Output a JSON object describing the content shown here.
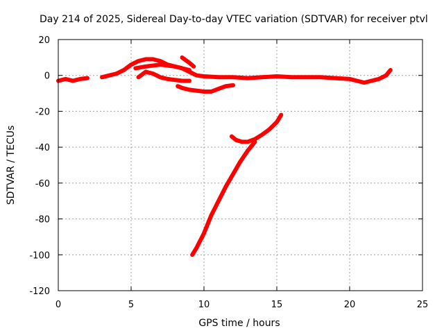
{
  "chart_data": {
    "type": "line",
    "title": "Day 214 of 2025, Sidereal Day-to-day VTEC variation (SDTVAR) for receiver ptvl",
    "xlabel": "GPS time / hours",
    "ylabel": "SDTVAR / TECUs",
    "xlim": [
      0,
      25
    ],
    "ylim": [
      -120,
      20
    ],
    "xticks": [
      "0",
      "5",
      "10",
      "15",
      "20",
      "25"
    ],
    "yticks": [
      "20",
      "0",
      "-20",
      "-40",
      "-60",
      "-80",
      "-100",
      "-120"
    ],
    "grid": true,
    "color": "#ff0000",
    "series": [
      {
        "x": [
          0.0,
          0.5,
          1.0,
          1.5,
          2.0
        ],
        "y": [
          -3,
          -2,
          -3,
          -2,
          -1.5
        ]
      },
      {
        "x": [
          3.0,
          3.5,
          4.0,
          4.5,
          5.0,
          5.5,
          6.0,
          6.5,
          7.0,
          7.5,
          8.0,
          8.5,
          9.0,
          9.5,
          10.0,
          11.0,
          12.0,
          13.0,
          14.0,
          15.0,
          16.0,
          17.0,
          18.0,
          19.0,
          20.0,
          20.5,
          21.0,
          21.5,
          22.0,
          22.5,
          22.8
        ],
        "y": [
          -1,
          0,
          1,
          3,
          6,
          8,
          9,
          9,
          8,
          6,
          5,
          4,
          2,
          0,
          -0.5,
          -1,
          -1,
          -1.5,
          -1,
          -0.5,
          -1,
          -1,
          -1,
          -1.5,
          -2,
          -3,
          -4,
          -3,
          -2,
          0,
          3
        ]
      },
      {
        "x": [
          5.3,
          6.0,
          7.0,
          8.0,
          9.0
        ],
        "y": [
          4,
          5,
          6,
          5,
          3
        ]
      },
      {
        "x": [
          5.5,
          6.0,
          6.5,
          7.0,
          7.5,
          8.0,
          8.5,
          9.0
        ],
        "y": [
          -1,
          2,
          1,
          -1,
          -2,
          -2.5,
          -3,
          -3
        ]
      },
      {
        "x": [
          8.2,
          8.5,
          9.0,
          10.0,
          10.5,
          11.0,
          11.5,
          12.0
        ],
        "y": [
          -6,
          -7,
          -8,
          -9,
          -9,
          -7.5,
          -6,
          -5.5
        ]
      },
      {
        "x": [
          9.2,
          9.5,
          10.0,
          10.3,
          10.5,
          11.0,
          11.5,
          12.0,
          12.5,
          13.0,
          13.5
        ],
        "y": [
          -100,
          -96,
          -88,
          -82,
          -78,
          -70,
          -62,
          -55,
          -48,
          -42,
          -37
        ]
      },
      {
        "x": [
          11.9,
          12.2,
          12.6,
          13.0,
          13.5,
          14.0,
          14.5,
          15.0,
          15.3
        ],
        "y": [
          -34,
          -36,
          -37,
          -37,
          -35.5,
          -33,
          -30,
          -26,
          -22
        ]
      },
      {
        "x": [
          8.5,
          9.0,
          9.3
        ],
        "y": [
          10,
          7,
          5
        ]
      }
    ]
  }
}
